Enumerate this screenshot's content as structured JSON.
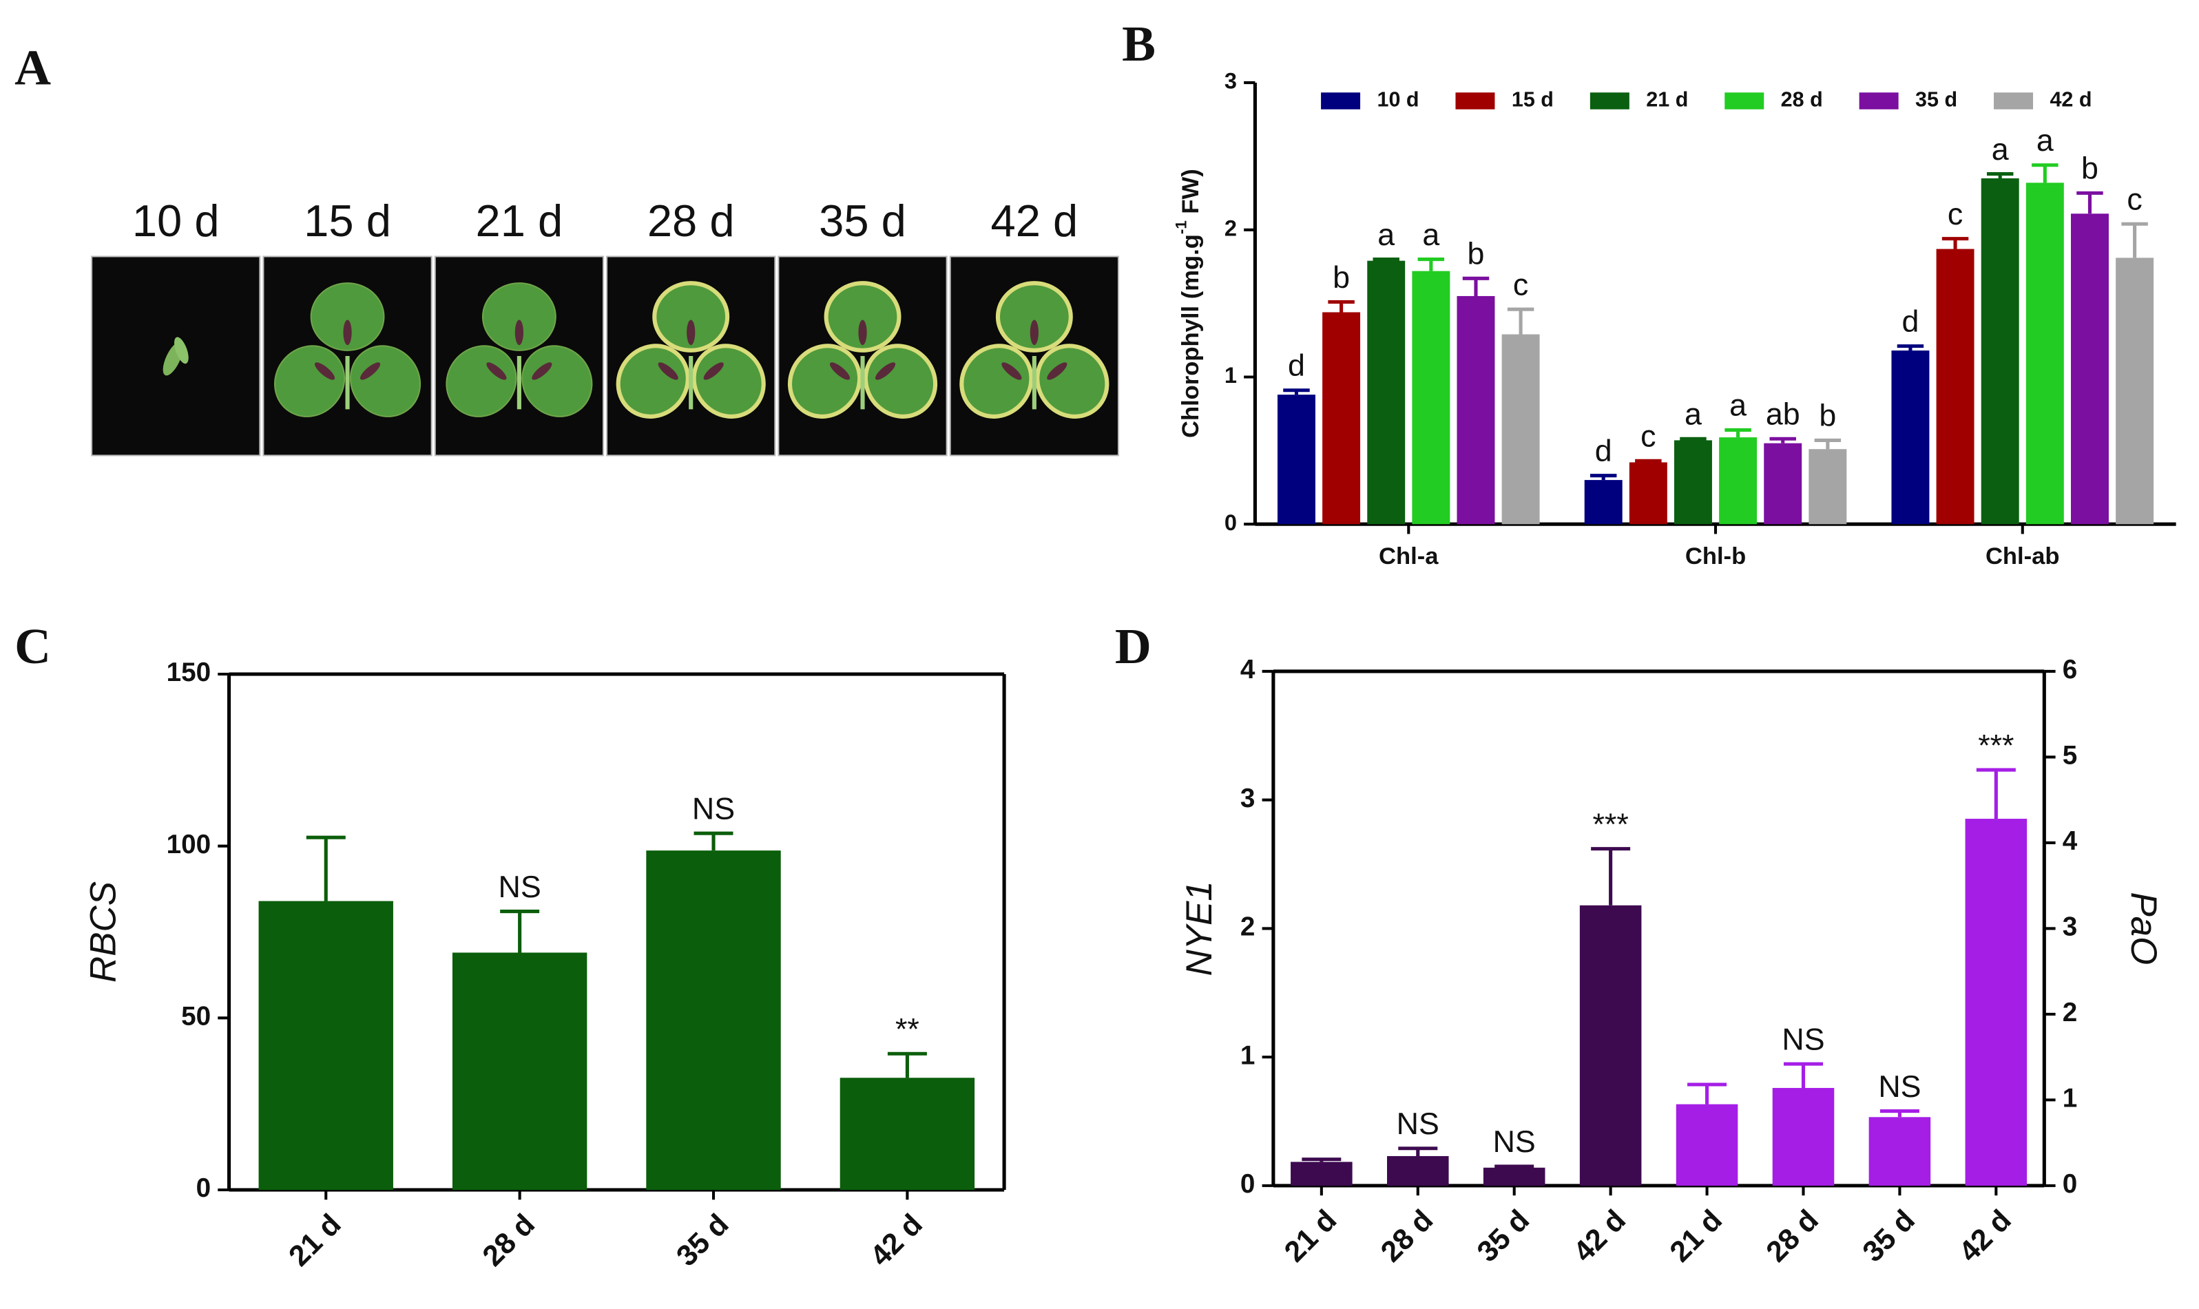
{
  "panel_a": {
    "panel": "A",
    "labels": [
      "10 d",
      "15 d",
      "21 d",
      "28 d",
      "35 d",
      "42 d"
    ]
  },
  "chart_data": [
    {
      "panel": "B",
      "type": "bar",
      "y_label": "Chlorophyll (mg.g",
      "y_label_sup": "-1",
      "y_label_suffix": " FW)",
      "categories": [
        "Chl-a",
        "Chl-b",
        "Chl-ab"
      ],
      "series": [
        {
          "name": "10 d",
          "color": "#00007f",
          "values": [
            0.88,
            0.3,
            1.18
          ],
          "errors": [
            0.03,
            0.03,
            0.03
          ],
          "significance": [
            "d",
            "d",
            "d"
          ]
        },
        {
          "name": "15 d",
          "color": "#a00000",
          "values": [
            1.44,
            0.42,
            1.87
          ],
          "errors": [
            0.07,
            0.01,
            0.07
          ],
          "significance": [
            "b",
            "c",
            "c"
          ]
        },
        {
          "name": "21 d",
          "color": "#0a6010",
          "values": [
            1.79,
            0.57,
            2.35
          ],
          "errors": [
            0.01,
            0.01,
            0.03
          ],
          "significance": [
            "a",
            "a",
            "a"
          ]
        },
        {
          "name": "28 d",
          "color": "#22cc22",
          "values": [
            1.72,
            0.59,
            2.32
          ],
          "errors": [
            0.08,
            0.05,
            0.12
          ],
          "significance": [
            "a",
            "a",
            "a"
          ]
        },
        {
          "name": "35 d",
          "color": "#7b0fa0",
          "values": [
            1.55,
            0.55,
            2.11
          ],
          "errors": [
            0.12,
            0.03,
            0.14
          ],
          "significance": [
            "b",
            "ab",
            "b"
          ]
        },
        {
          "name": "42 d",
          "color": "#a5a5a5",
          "values": [
            1.29,
            0.51,
            1.81
          ],
          "errors": [
            0.17,
            0.06,
            0.23
          ],
          "significance": [
            "c",
            "b",
            "c"
          ]
        }
      ],
      "ylim": [
        0,
        3
      ],
      "yticks": [
        0,
        1,
        2,
        3
      ]
    },
    {
      "panel": "C",
      "type": "bar",
      "y_label": "RBCS",
      "categories": [
        "21 d",
        "28 d",
        "35 d",
        "42 d"
      ],
      "values": [
        84,
        69,
        98.7,
        32.6
      ],
      "errors": [
        18.5,
        12,
        5,
        7
      ],
      "significance": [
        null,
        "NS",
        "NS",
        "**"
      ],
      "color": "#0b5e0b",
      "ylim": [
        0,
        150
      ],
      "yticks": [
        0,
        50,
        100,
        150
      ]
    },
    {
      "panel": "D",
      "type": "bar",
      "y_label": "NYE1",
      "y2_label": "PaO",
      "categories": [
        "21 d",
        "28 d",
        "35 d",
        "42 d",
        "21 d",
        "28 d",
        "35 d",
        "42 d"
      ],
      "series": [
        {
          "color": "#3d0a4f",
          "values": [
            0.185,
            0.23,
            0.14,
            2.18,
            null,
            null,
            null,
            null
          ],
          "errors": [
            0.02,
            0.06,
            0.01,
            0.44,
            null,
            null,
            null,
            null
          ],
          "significance": [
            null,
            "NS",
            "NS",
            "***",
            null,
            null,
            null,
            null
          ]
        },
        {
          "color": "#a51ee6",
          "axis": "y2",
          "values": [
            null,
            null,
            null,
            null,
            0.95,
            1.14,
            0.8,
            4.28
          ],
          "errors": [
            null,
            null,
            null,
            null,
            0.23,
            0.28,
            0.07,
            0.57
          ],
          "significance": [
            null,
            null,
            null,
            null,
            null,
            "NS",
            "NS",
            "***"
          ]
        }
      ],
      "ylim": [
        0,
        4
      ],
      "yticks": [
        0,
        1,
        2,
        3,
        4
      ],
      "y2lim": [
        0,
        6
      ],
      "y2ticks": [
        0,
        1,
        2,
        3,
        4,
        5,
        6
      ]
    }
  ]
}
